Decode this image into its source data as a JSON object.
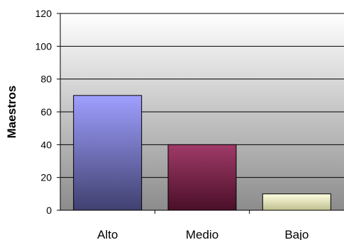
{
  "chart_data": {
    "type": "bar",
    "categories": [
      "Alto",
      "Medio",
      "Bajo"
    ],
    "values": [
      70,
      40,
      10
    ],
    "title": "",
    "xlabel": "",
    "ylabel": "Maestros",
    "ylim": [
      0,
      120
    ],
    "yticks": [
      0,
      20,
      40,
      60,
      80,
      100,
      120
    ],
    "grid": true,
    "legend": "none",
    "colors": {
      "bars_top": [
        "#9f9fff",
        "#a03a68",
        "#ffffe0"
      ],
      "bars_bottom": [
        "#404070",
        "#4a0f28",
        "#bfbf90"
      ],
      "plot_top": "#ffffff",
      "plot_bottom": "#8c8c8c"
    }
  }
}
